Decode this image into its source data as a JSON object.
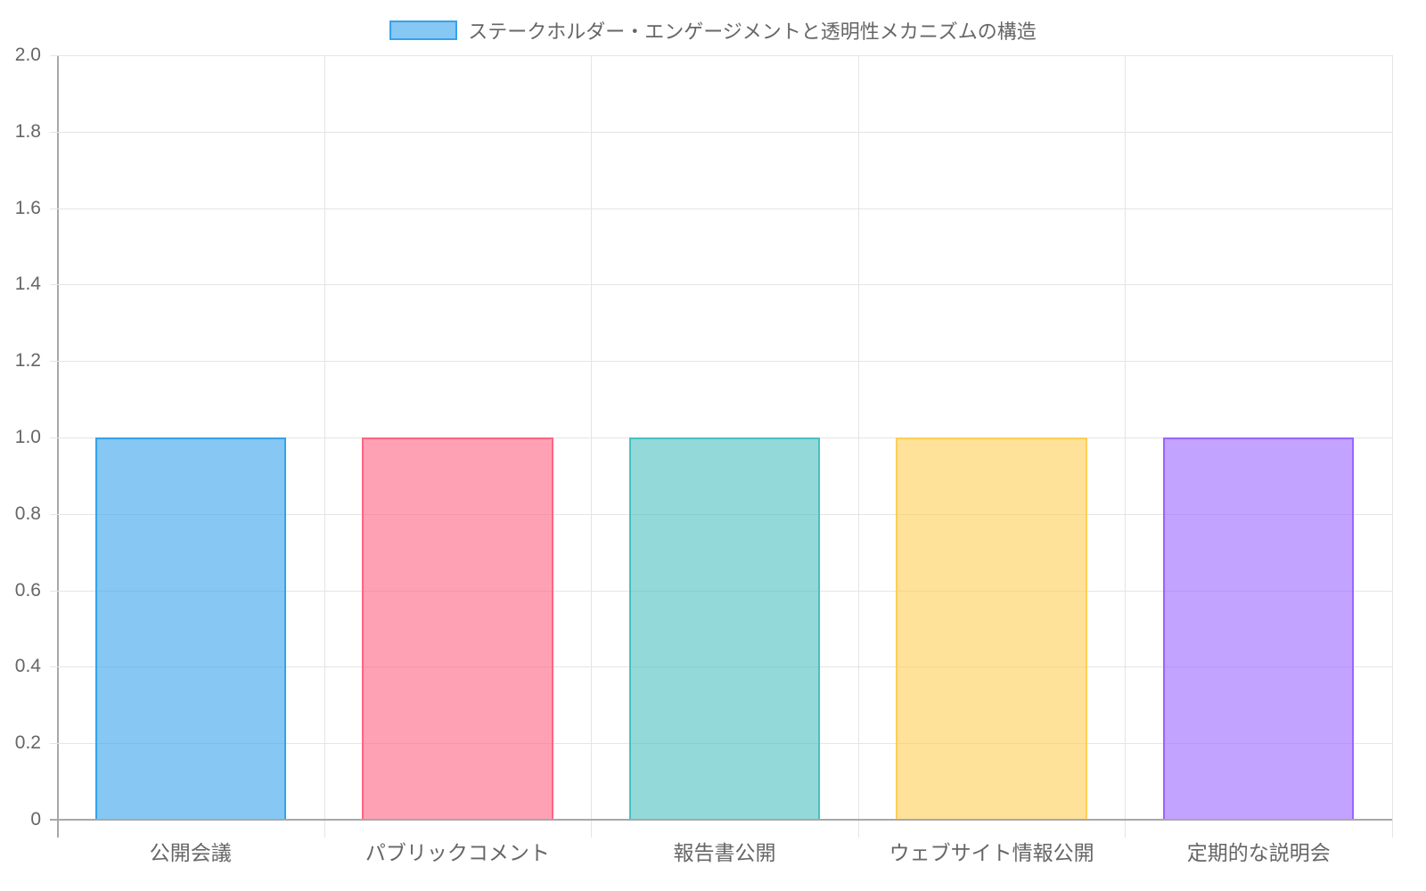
{
  "legend": {
    "label": "ステークホルダー・エンゲージメントと透明性メカニズムの構造",
    "swatch_fill": "rgba(54,162,235,0.6)",
    "swatch_border": "#36a2eb"
  },
  "y_ticks": [
    "2.0",
    "1.8",
    "1.6",
    "1.4",
    "1.2",
    "1.0",
    "0.8",
    "0.6",
    "0.4",
    "0.2",
    "0"
  ],
  "x_ticks": [
    "公開会議",
    "パブリックコメント",
    "報告書公開",
    "ウェブサイト情報公開",
    "定期的な説明会"
  ],
  "bar_colors": [
    {
      "fill": "rgba(54,162,235,0.6)",
      "border": "#36a2eb"
    },
    {
      "fill": "rgba(255,99,132,0.6)",
      "border": "#ff6384"
    },
    {
      "fill": "rgba(75,192,192,0.6)",
      "border": "#4bc0c0"
    },
    {
      "fill": "rgba(255,206,86,0.6)",
      "border": "#ffce56"
    },
    {
      "fill": "rgba(153,102,255,0.6)",
      "border": "#9966ff"
    }
  ],
  "chart_data": {
    "type": "bar",
    "title": "",
    "categories": [
      "公開会議",
      "パブリックコメント",
      "報告書公開",
      "ウェブサイト情報公開",
      "定期的な説明会"
    ],
    "series": [
      {
        "name": "ステークホルダー・エンゲージメントと透明性メカニズムの構造",
        "values": [
          1,
          1,
          1,
          1,
          1
        ]
      }
    ],
    "values": [
      1,
      1,
      1,
      1,
      1
    ],
    "xlabel": "",
    "ylabel": "",
    "ylim": [
      0,
      2.0
    ],
    "yticks": [
      0,
      0.2,
      0.4,
      0.6,
      0.8,
      1.0,
      1.2,
      1.4,
      1.6,
      1.8,
      2.0
    ],
    "grid": true,
    "legend_position": "top"
  }
}
